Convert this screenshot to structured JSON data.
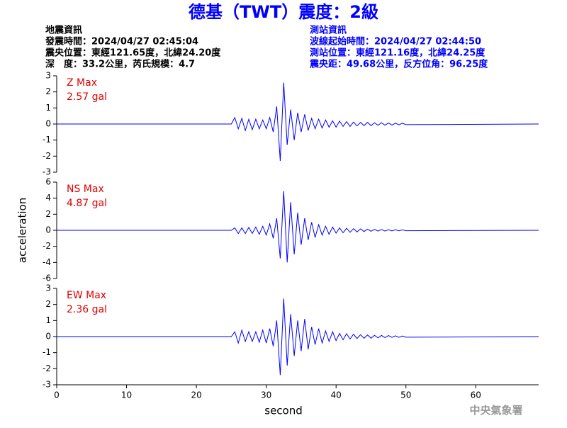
{
  "header": {
    "title": "德基（TWT）震度：2級",
    "left": [
      "地震資訊",
      "發震時間：2024/04/27 02:45:04",
      "震央位置：東經121.65度，北緯24.20度",
      "深　度：33.2公里，芮氏規模：4.7"
    ],
    "right": [
      "測站資訊",
      "波線起始時間：2024/04/27 02:44:50",
      "測站位置：東經121.16度，北緯24.25度",
      "震央距：49.68公里，反方位角：96.25度"
    ]
  },
  "footer": "中央氣象署",
  "chart_data": [
    {
      "type": "line",
      "annotation": [
        "Z Max",
        "2.57 gal"
      ],
      "color": "#0000ff",
      "xlim": [
        0,
        69
      ],
      "ylim": [
        -3,
        3
      ],
      "yticks": [
        -3,
        -2,
        -1,
        0,
        1,
        2,
        3
      ],
      "x": [
        0,
        25,
        25.5,
        26,
        26.5,
        27,
        27.5,
        28,
        28.5,
        29,
        29.5,
        30,
        30.5,
        31,
        31.5,
        32,
        32.5,
        33,
        33.5,
        34,
        34.5,
        35,
        35.5,
        36,
        36.5,
        37,
        37.5,
        38,
        38.5,
        39,
        39.5,
        40,
        40.5,
        41,
        41.5,
        42,
        42.5,
        43,
        43.5,
        44,
        44.5,
        45,
        45.5,
        46,
        46.5,
        47,
        47.5,
        48,
        48.5,
        49,
        49.5,
        50,
        69
      ],
      "values": [
        0,
        0,
        0.4,
        -0.3,
        0.35,
        -0.4,
        0.3,
        -0.35,
        0.3,
        -0.3,
        0.25,
        -0.3,
        0.4,
        -0.5,
        1.1,
        -2.3,
        2.57,
        -1.3,
        0.9,
        -1.0,
        0.7,
        -0.5,
        0.6,
        -0.4,
        0.35,
        -0.3,
        0.3,
        -0.25,
        0.25,
        -0.2,
        0.2,
        -0.2,
        0.18,
        -0.15,
        0.15,
        -0.15,
        0.12,
        -0.12,
        0.1,
        -0.1,
        0.1,
        -0.1,
        0.08,
        -0.08,
        0.08,
        -0.07,
        0.06,
        -0.06,
        0.05,
        -0.05,
        0.05,
        -0.04,
        0
      ]
    },
    {
      "type": "line",
      "annotation": [
        "NS Max",
        "4.87 gal"
      ],
      "ylabel": "acceleration",
      "color": "#0000ff",
      "xlim": [
        0,
        69
      ],
      "ylim": [
        -6,
        6
      ],
      "yticks": [
        -6,
        -4,
        -2,
        0,
        2,
        4,
        6
      ],
      "x": [
        0,
        25,
        25.5,
        26,
        26.5,
        27,
        27.5,
        28,
        28.5,
        29,
        29.5,
        30,
        30.5,
        31,
        31.5,
        32,
        32.5,
        33,
        33.5,
        34,
        34.5,
        35,
        35.5,
        36,
        36.5,
        37,
        37.5,
        38,
        38.5,
        39,
        39.5,
        40,
        40.5,
        41,
        41.5,
        42,
        42.5,
        43,
        43.5,
        44,
        44.5,
        45,
        45.5,
        46,
        46.5,
        47,
        47.5,
        48,
        48.5,
        49,
        49.5,
        50,
        69
      ],
      "values": [
        0,
        0,
        0.3,
        -0.4,
        0.3,
        -0.4,
        0.35,
        -0.4,
        0.4,
        -0.5,
        0.5,
        -0.6,
        0.8,
        -1.0,
        1.5,
        -3.5,
        4.87,
        -4.0,
        3.5,
        -3.0,
        2.2,
        -1.8,
        1.5,
        -1.2,
        1.0,
        -0.9,
        0.7,
        -0.6,
        0.5,
        -0.5,
        0.4,
        -0.35,
        0.3,
        -0.3,
        0.25,
        -0.25,
        0.2,
        -0.2,
        0.18,
        -0.15,
        0.15,
        -0.12,
        0.12,
        -0.1,
        0.1,
        -0.1,
        0.08,
        -0.08,
        0.06,
        -0.06,
        0.05,
        -0.05,
        0
      ]
    },
    {
      "type": "line",
      "annotation": [
        "EW Max",
        "2.36 gal"
      ],
      "xlabel": "second",
      "color": "#0000ff",
      "xlim": [
        0,
        69
      ],
      "ylim": [
        -3,
        3
      ],
      "yticks": [
        -3,
        -2,
        -1,
        0,
        1,
        2,
        3
      ],
      "xticks": [
        0,
        10,
        20,
        30,
        40,
        50,
        60
      ],
      "x": [
        0,
        25,
        25.5,
        26,
        26.5,
        27,
        27.5,
        28,
        28.5,
        29,
        29.5,
        30,
        30.5,
        31,
        31.5,
        32,
        32.5,
        33,
        33.5,
        34,
        34.5,
        35,
        35.5,
        36,
        36.5,
        37,
        37.5,
        38,
        38.5,
        39,
        39.5,
        40,
        40.5,
        41,
        41.5,
        42,
        42.5,
        43,
        43.5,
        44,
        44.5,
        45,
        45.5,
        46,
        46.5,
        47,
        47.5,
        48,
        48.5,
        49,
        49.5,
        50,
        69
      ],
      "values": [
        0,
        0,
        0.3,
        -0.4,
        0.4,
        -0.3,
        0.3,
        -0.3,
        0.3,
        -0.35,
        0.4,
        -0.4,
        0.5,
        -0.6,
        1.0,
        -2.4,
        2.36,
        -1.8,
        1.4,
        -1.2,
        1.0,
        -0.9,
        1.1,
        -0.8,
        0.6,
        -0.5,
        0.5,
        -0.4,
        0.35,
        -0.3,
        0.3,
        -0.25,
        0.2,
        -0.2,
        0.18,
        -0.15,
        0.15,
        -0.12,
        0.12,
        -0.1,
        0.1,
        -0.1,
        0.08,
        -0.08,
        0.07,
        -0.06,
        0.06,
        -0.05,
        0.05,
        -0.05,
        0.04,
        -0.04,
        0
      ]
    }
  ]
}
